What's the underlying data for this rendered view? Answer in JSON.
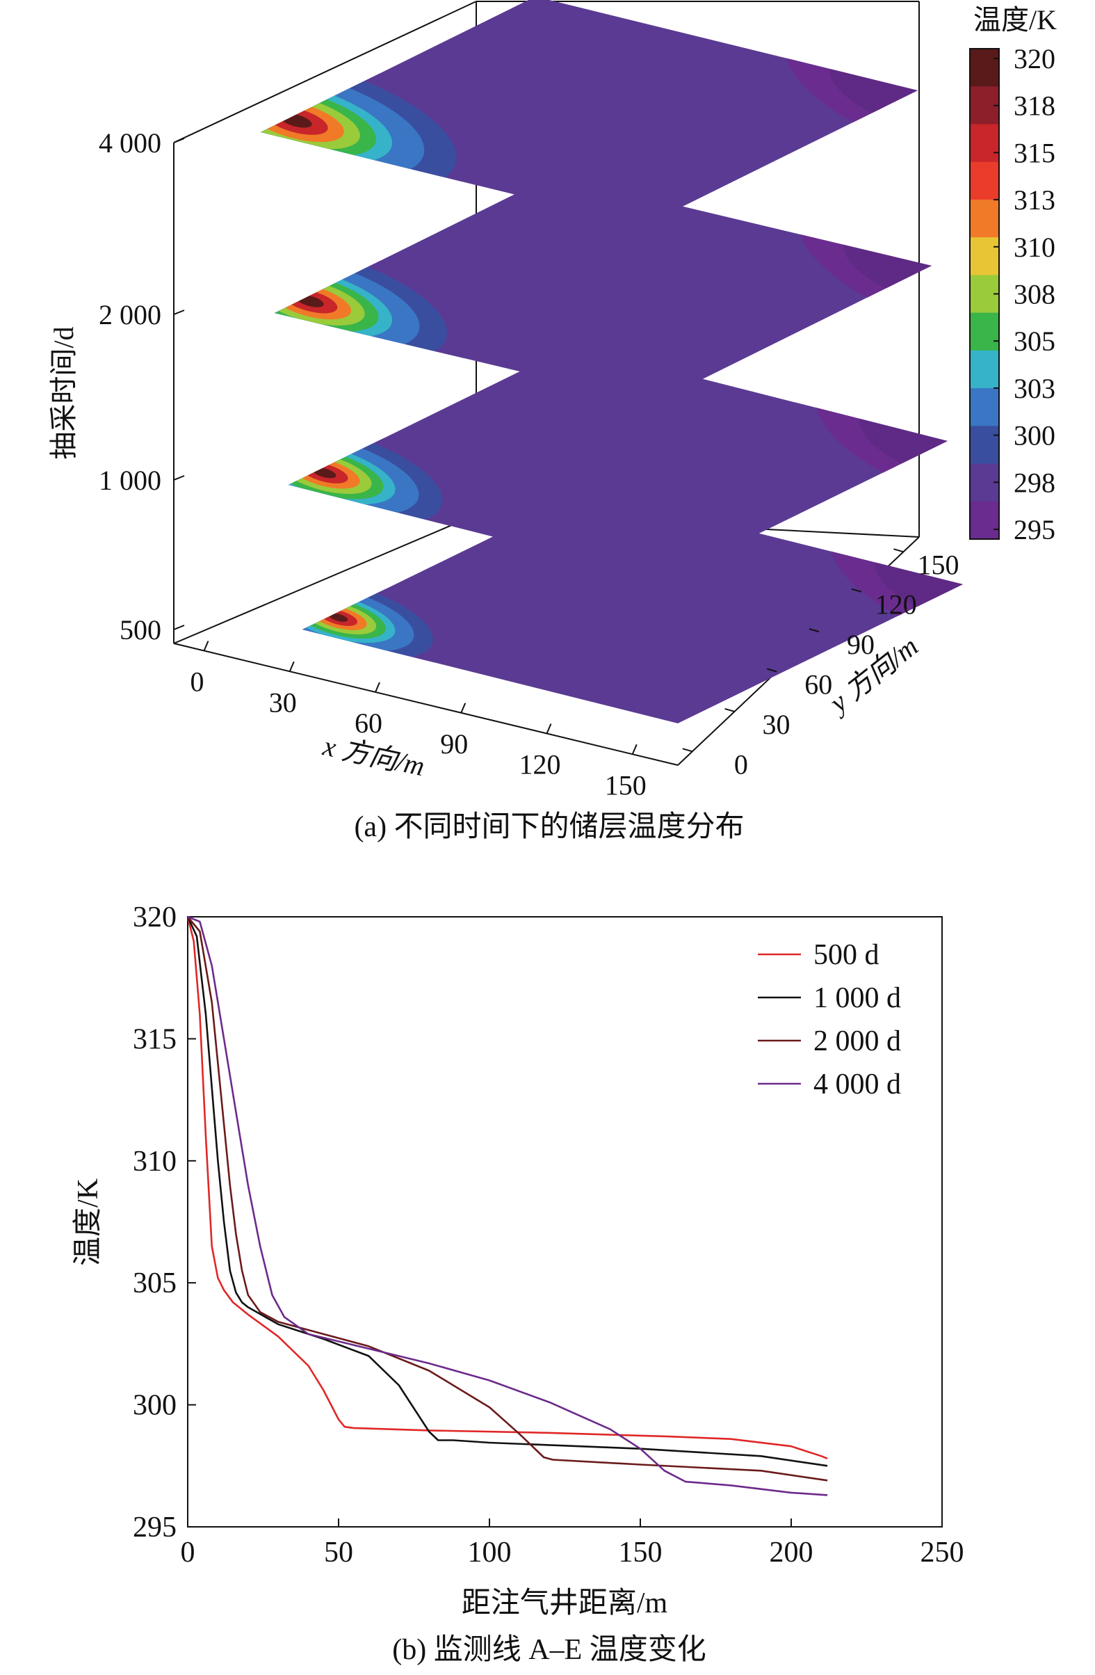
{
  "chart_data": [
    {
      "type": "heatmap",
      "caption": "(a) 不同时间下的储层温度分布",
      "xlabel": "x 方向/m",
      "ylabel": "y 方向/m",
      "zlabel": "抽采时间/d",
      "x_ticks": [
        0,
        30,
        60,
        90,
        120,
        150
      ],
      "y_ticks": [
        0,
        30,
        60,
        90,
        120,
        150
      ],
      "z_ticks": [
        {
          "value": 500,
          "label": "500"
        },
        {
          "value": 1000,
          "label": "1 000"
        },
        {
          "value": 2000,
          "label": "2 000"
        },
        {
          "value": 4000,
          "label": "4 000"
        }
      ],
      "colorbar": {
        "title": "温度/K",
        "min": 295,
        "max": 320,
        "tick_labels": [
          "320",
          "318",
          "315",
          "313",
          "310",
          "308",
          "305",
          "303",
          "300",
          "298",
          "295"
        ],
        "colors": [
          "#5a1a1a",
          "#8c1f2a",
          "#c8262a",
          "#ea3b2b",
          "#f07a28",
          "#e8c534",
          "#9acb3a",
          "#39b54a",
          "#36b3c9",
          "#3a76c4",
          "#3a4ea0",
          "#5b3a93",
          "#6a2c8e"
        ]
      },
      "layers": [
        {
          "time": 500,
          "plume_radius": 40,
          "far_temp": 298.5
        },
        {
          "time": 1000,
          "plume_radius": 50,
          "far_temp": 298.2
        },
        {
          "time": 2000,
          "plume_radius": 58,
          "far_temp": 297.8
        },
        {
          "time": 4000,
          "plume_radius": 68,
          "far_temp": 297.2
        }
      ]
    },
    {
      "type": "line",
      "caption": "(b) 监测线 A–E 温度变化",
      "xlabel": "距注气井距离/m",
      "ylabel": "温度/K",
      "xlim": [
        0,
        250
      ],
      "ylim": [
        295,
        320
      ],
      "x_ticks": [
        0,
        50,
        100,
        150,
        200,
        250
      ],
      "y_ticks": [
        295,
        300,
        305,
        310,
        315,
        320
      ],
      "legend_position": "top-right",
      "series": [
        {
          "name": "500 d",
          "color": "#e02727",
          "x": [
            0,
            2,
            4,
            6,
            8,
            10,
            12,
            15,
            20,
            30,
            40,
            45,
            50,
            52,
            55,
            80,
            120,
            160,
            180,
            200,
            210,
            212
          ],
          "y": [
            320,
            319,
            316,
            311,
            306.5,
            305.2,
            304.7,
            304.2,
            303.7,
            302.8,
            301.6,
            300.6,
            299.4,
            299.1,
            299.05,
            298.95,
            298.85,
            298.7,
            298.6,
            298.3,
            297.9,
            297.8
          ]
        },
        {
          "name": "1 000 d",
          "color": "#111111",
          "x": [
            0,
            3,
            6,
            8,
            10,
            12,
            14,
            16,
            18,
            20,
            30,
            45,
            60,
            70,
            80,
            83,
            88,
            100,
            150,
            190,
            212
          ],
          "y": [
            320,
            319.2,
            316,
            313,
            310,
            307.5,
            305.5,
            304.6,
            304.2,
            304,
            303.3,
            302.7,
            302,
            300.8,
            298.9,
            298.55,
            298.55,
            298.45,
            298.2,
            297.9,
            297.5
          ]
        },
        {
          "name": "2 000 d",
          "color": "#6b1a1a",
          "x": [
            0,
            4,
            8,
            10,
            12,
            14,
            16,
            18,
            20,
            24,
            30,
            45,
            60,
            80,
            100,
            110,
            118,
            121,
            150,
            190,
            212
          ],
          "y": [
            320,
            319.4,
            316.5,
            314,
            311.5,
            309,
            307,
            305.5,
            304.5,
            303.8,
            303.4,
            302.9,
            302.4,
            301.4,
            299.9,
            298.8,
            297.85,
            297.75,
            297.55,
            297.3,
            296.9
          ]
        },
        {
          "name": "4 000 d",
          "color": "#6c2a8a",
          "x": [
            0,
            4,
            8,
            12,
            16,
            20,
            24,
            28,
            32,
            40,
            60,
            80,
            100,
            120,
            140,
            150,
            158,
            165,
            180,
            200,
            212
          ],
          "y": [
            320,
            319.8,
            318,
            315,
            312,
            309,
            306.5,
            304.5,
            303.6,
            302.9,
            302.3,
            301.7,
            301,
            300.1,
            299,
            298.2,
            297.3,
            296.85,
            296.7,
            296.4,
            296.3
          ]
        }
      ]
    }
  ]
}
